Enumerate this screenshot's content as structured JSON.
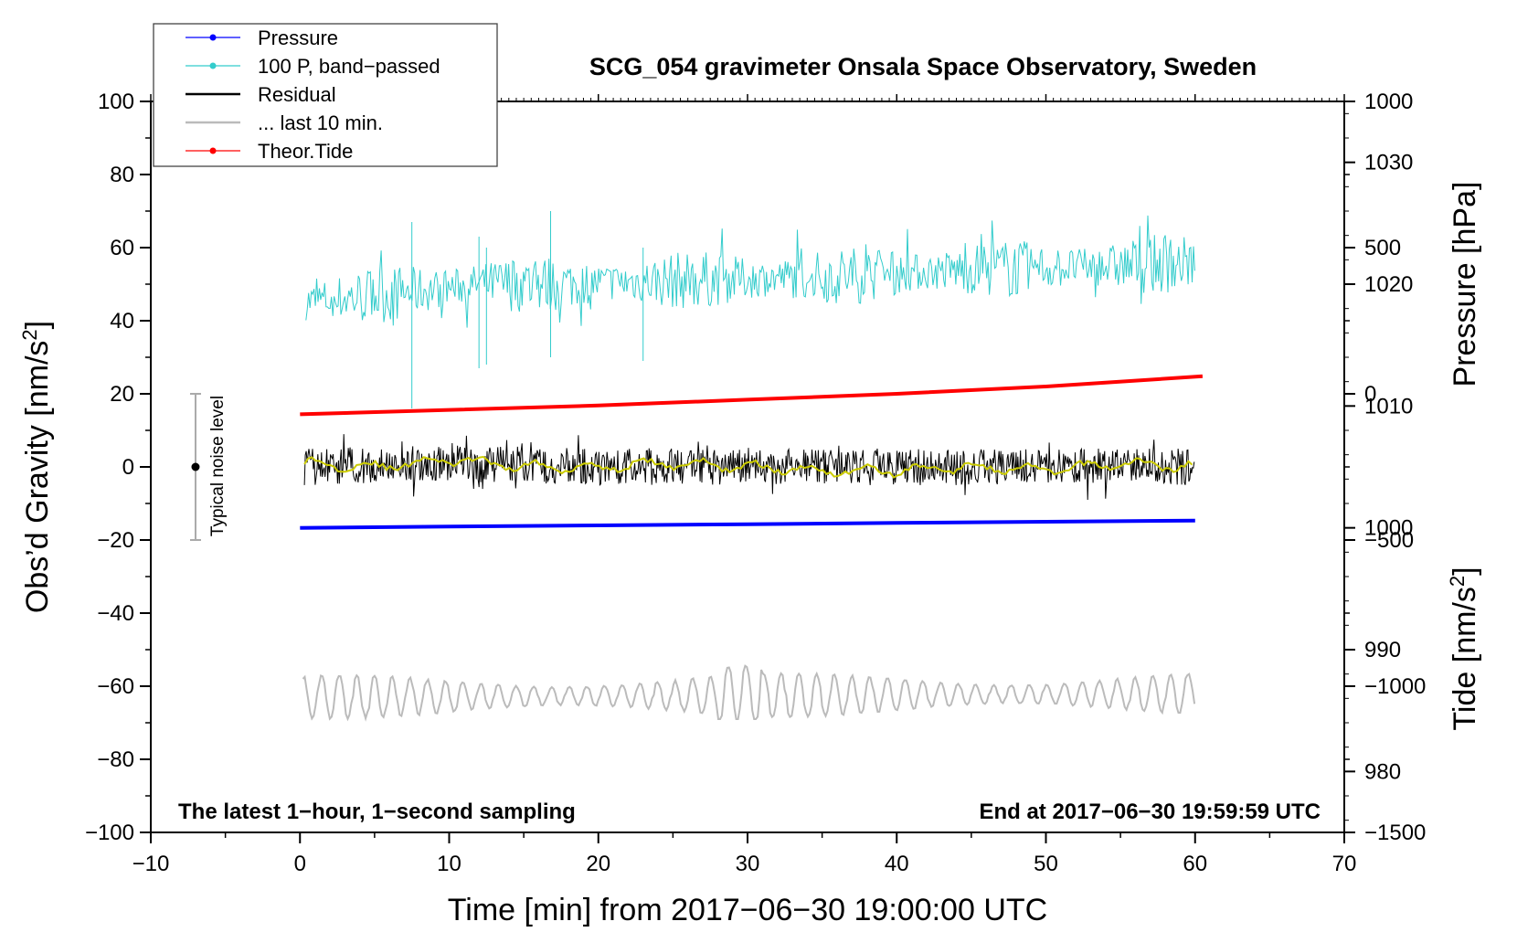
{
  "chart_data": {
    "type": "line",
    "title": "SCG_054 gravimeter Onsala Space Observatory, Sweden",
    "xlabel": "Time [min] from 2017−06−30 19:00:00 UTC",
    "ylabel": "Obs’d Gravity [nm/s²]",
    "ylabel_main": "Obs’d Gravity [nm/s",
    "ylabel_sup": "2",
    "ylabel_end": "]",
    "y2label": "Pressure [hPa]",
    "y3label": "Tide [nm/s²]",
    "y3label_main": "Tide [nm/s",
    "y3label_sup": "2",
    "y3label_end": "]",
    "xlim": [
      -10,
      70
    ],
    "ylim": [
      -100,
      100
    ],
    "y2_pressure_range": [
      975,
      1035
    ],
    "y3_tide_range": [
      -1500,
      1000
    ],
    "x_ticks": [
      "−10",
      "0",
      "10",
      "20",
      "30",
      "40",
      "50",
      "60",
      "70"
    ],
    "y_ticks": [
      "100",
      "80",
      "60",
      "40",
      "20",
      "0",
      "−20",
      "−40",
      "−60",
      "−80",
      "−100"
    ],
    "pressure_ticks": [
      "1030",
      "1020",
      "1010",
      "1000",
      "990",
      "980"
    ],
    "tide_ticks": [
      "1000",
      "500",
      "0",
      "−500",
      "−1000",
      "−1500"
    ],
    "notes": {
      "bottom_left": "The latest 1−hour, 1−second sampling",
      "bottom_right": "End at 2017−06−30 19:59:59 UTC",
      "noise": "Typical noise level"
    },
    "noise_bar": {
      "x": -7,
      "center": 0,
      "low": -20,
      "high": 20
    },
    "legend": [
      {
        "label": "Pressure",
        "color": "#0000ff",
        "marker": true
      },
      {
        "label": "100 P, band−passed",
        "color": "#33cccc",
        "marker": true
      },
      {
        "label": "Residual",
        "color": "#000000",
        "marker": false
      },
      {
        "label": "... last 10 min.",
        "color": "#bbbbbb",
        "marker": false
      },
      {
        "label": "Theor.Tide",
        "color": "#ff0000",
        "marker": true
      }
    ],
    "series": [
      {
        "name": "Pressure",
        "axis": "pressure_hPa",
        "color": "#0000ff",
        "x": [
          0,
          10,
          20,
          30,
          40,
          50,
          60
        ],
        "values": [
          1000.0,
          1000.1,
          1000.2,
          1000.3,
          1000.4,
          1000.5,
          1000.6
        ]
      },
      {
        "name": "100 P, band−passed",
        "axis": "gravity_nm_s2",
        "color": "#33cccc",
        "x": [
          0,
          7.5,
          12,
          17,
          25,
          35,
          45,
          55,
          60
        ],
        "values": [
          45,
          48,
          50,
          50,
          51,
          52,
          54,
          55,
          56
        ],
        "range": [
          16,
          70
        ]
      },
      {
        "name": "Residual",
        "axis": "gravity_nm_s2",
        "color": "#000000",
        "x": [
          0,
          10,
          20,
          30,
          40,
          50,
          60
        ],
        "values": [
          0,
          1,
          0,
          0,
          0,
          0,
          0
        ],
        "range": [
          -9,
          10
        ]
      },
      {
        "name": "Residual (smoothed)",
        "axis": "gravity_nm_s2",
        "color": "#cccc00",
        "x": [
          0,
          5,
          10,
          15,
          20,
          25,
          30,
          35,
          40,
          45,
          50,
          55,
          60
        ],
        "values": [
          1,
          0,
          2,
          0,
          0,
          1,
          0,
          -1,
          -1,
          0,
          -1,
          1,
          0
        ]
      },
      {
        "name": "... last 10 min.",
        "axis": "gravity_nm_s2",
        "color": "#bbbbbb",
        "x": [
          0,
          60
        ],
        "values": [
          -63,
          -62
        ],
        "range": [
          -69,
          -54
        ]
      },
      {
        "name": "Theor.Tide",
        "axis": "tide_nm_s2",
        "color": "#ff0000",
        "x": [
          0,
          10,
          20,
          30,
          40,
          50,
          60.5
        ],
        "values": [
          -70,
          -55,
          -40,
          -20,
          0,
          25,
          60
        ]
      }
    ]
  }
}
